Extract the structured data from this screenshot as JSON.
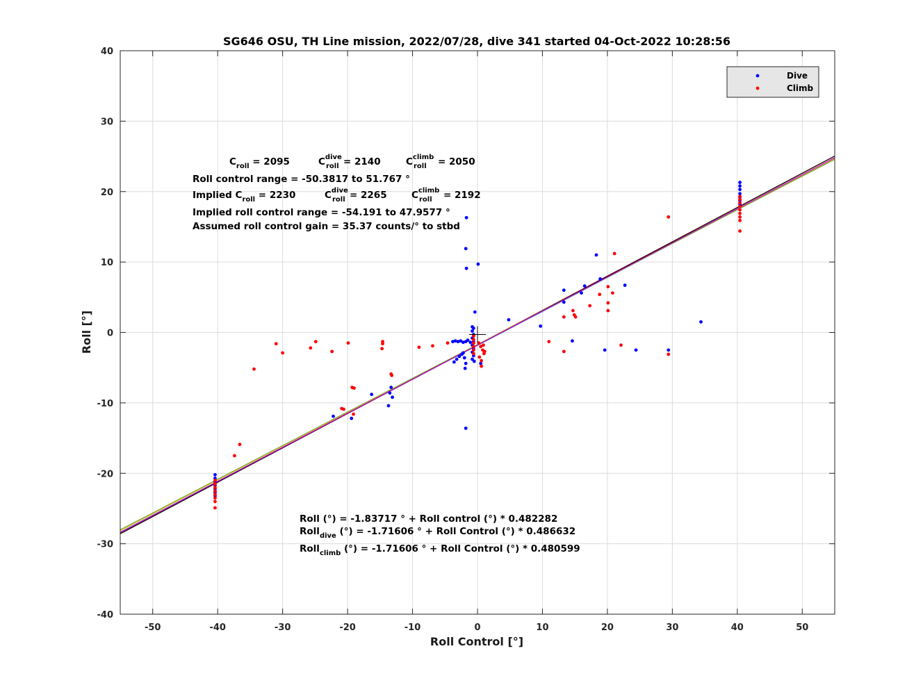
{
  "chart_data": {
    "type": "scatter",
    "title": "SG646 OSU, TH Line mission, 2022/07/28, dive 341 started 04-Oct-2022 10:28:56",
    "xlabel": "Roll Control [°]",
    "ylabel": "Roll [°]",
    "xlim": [
      -55,
      55
    ],
    "ylim": [
      -40,
      40
    ],
    "xticks": [
      -50,
      -40,
      -30,
      -20,
      -10,
      0,
      10,
      20,
      30,
      40,
      50
    ],
    "yticks": [
      -40,
      -30,
      -20,
      -10,
      0,
      10,
      20,
      30,
      40
    ],
    "grid": true,
    "legend_position": "top-right",
    "legend": [
      "Dive",
      "Climb"
    ],
    "colors": {
      "dive": "#0000ff",
      "climb": "#ff0000"
    },
    "series": [
      {
        "name": "Dive",
        "color": "#0000ff",
        "points": [
          [
            -40.4,
            -20.2
          ],
          [
            -40.4,
            -20.7
          ],
          [
            -40.4,
            -21.2
          ],
          [
            -40.4,
            -21.7
          ],
          [
            -40.4,
            -22.2
          ],
          [
            -40.4,
            -22.7
          ],
          [
            -40.4,
            -23.2
          ],
          [
            -22.2,
            -11.9
          ],
          [
            -19.4,
            -12.2
          ],
          [
            -16.3,
            -8.8
          ],
          [
            -13.7,
            -10.4
          ],
          [
            -13.3,
            -7.8
          ],
          [
            -13.1,
            -9.2
          ],
          [
            -13.5,
            -8.6
          ],
          [
            -3.8,
            -1.3
          ],
          [
            -3.4,
            -1.2
          ],
          [
            -3.0,
            -1.3
          ],
          [
            -2.6,
            -1.2
          ],
          [
            -2.2,
            -1.4
          ],
          [
            -1.8,
            -1.3
          ],
          [
            -1.5,
            -1.1
          ],
          [
            -1.1,
            -1.4
          ],
          [
            -3.6,
            -4.2
          ],
          [
            -3.2,
            -3.8
          ],
          [
            -2.8,
            -3.4
          ],
          [
            -2.4,
            -3.1
          ],
          [
            -2.0,
            -3.6
          ],
          [
            -1.8,
            -4.4
          ],
          [
            -1.9,
            -5.1
          ],
          [
            -2.2,
            -2.9
          ],
          [
            -1.7,
            16.3
          ],
          [
            -1.8,
            11.9
          ],
          [
            -1.7,
            9.1
          ],
          [
            0.1,
            9.7
          ],
          [
            -0.4,
            2.9
          ],
          [
            -1.8,
            -13.6
          ],
          [
            0.5,
            -4.4
          ],
          [
            -0.8,
            0.8
          ],
          [
            -0.6,
            0.6
          ],
          [
            -0.8,
            0.2
          ],
          [
            -0.6,
            -0.3
          ],
          [
            -0.8,
            -0.8
          ],
          [
            -0.6,
            -1.3
          ],
          [
            -0.8,
            -1.8
          ],
          [
            -0.6,
            -2.3
          ],
          [
            -0.8,
            -2.8
          ],
          [
            -0.6,
            -3.3
          ],
          [
            -0.8,
            -3.8
          ],
          [
            -0.5,
            -4.1
          ],
          [
            4.8,
            1.8
          ],
          [
            9.7,
            0.9
          ],
          [
            13.3,
            6.0
          ],
          [
            13.3,
            4.3
          ],
          [
            14.6,
            -1.2
          ],
          [
            16.0,
            5.6
          ],
          [
            16.5,
            6.6
          ],
          [
            18.3,
            11.0
          ],
          [
            18.9,
            7.6
          ],
          [
            19.6,
            -2.5
          ],
          [
            22.7,
            6.7
          ],
          [
            24.4,
            -2.5
          ],
          [
            29.4,
            -2.5
          ],
          [
            34.4,
            1.5
          ],
          [
            40.4,
            21.3
          ],
          [
            40.4,
            20.8
          ],
          [
            40.4,
            20.3
          ],
          [
            40.4,
            19.7
          ],
          [
            40.4,
            19.2
          ],
          [
            40.4,
            18.7
          ],
          [
            40.4,
            18.2
          ]
        ]
      },
      {
        "name": "Climb",
        "color": "#ff0000",
        "points": [
          [
            -40.4,
            -21.0
          ],
          [
            -40.4,
            -21.5
          ],
          [
            -40.4,
            -22.0
          ],
          [
            -40.4,
            -22.5
          ],
          [
            -40.4,
            -23.0
          ],
          [
            -40.4,
            -23.5
          ],
          [
            -40.4,
            -24.0
          ],
          [
            -40.4,
            -24.9
          ],
          [
            -37.4,
            -17.5
          ],
          [
            -36.6,
            -15.9
          ],
          [
            -34.4,
            -5.2
          ],
          [
            -31.0,
            -1.6
          ],
          [
            -30.0,
            -2.9
          ],
          [
            -25.7,
            -2.2
          ],
          [
            -24.9,
            -1.3
          ],
          [
            -22.4,
            -2.7
          ],
          [
            -20.9,
            -10.8
          ],
          [
            -20.6,
            -10.9
          ],
          [
            -19.9,
            -1.5
          ],
          [
            -19.3,
            -7.8
          ],
          [
            -19.0,
            -7.9
          ],
          [
            -19.1,
            -11.6
          ],
          [
            -14.6,
            -1.3
          ],
          [
            -14.6,
            -1.6
          ],
          [
            -14.7,
            -2.3
          ],
          [
            -13.3,
            -5.9
          ],
          [
            -13.2,
            -6.1
          ],
          [
            -9.0,
            -2.1
          ],
          [
            -6.9,
            -1.9
          ],
          [
            -4.6,
            -1.5
          ],
          [
            -0.6,
            -0.5
          ],
          [
            -0.6,
            -1.0
          ],
          [
            -0.6,
            -1.5
          ],
          [
            -0.6,
            -2.0
          ],
          [
            -0.6,
            -2.5
          ],
          [
            -0.6,
            -3.0
          ],
          [
            0.2,
            -1.5
          ],
          [
            0.5,
            -2.0
          ],
          [
            0.8,
            -2.5
          ],
          [
            1.0,
            -3.0
          ],
          [
            0.3,
            -3.5
          ],
          [
            0.6,
            -4.0
          ],
          [
            0.6,
            -4.8
          ],
          [
            0.9,
            -1.8
          ],
          [
            1.1,
            -2.7
          ],
          [
            11.0,
            -1.3
          ],
          [
            13.3,
            -2.7
          ],
          [
            13.3,
            2.2
          ],
          [
            14.7,
            3.1
          ],
          [
            14.9,
            2.5
          ],
          [
            15.1,
            2.2
          ],
          [
            17.3,
            3.8
          ],
          [
            18.8,
            5.4
          ],
          [
            20.1,
            3.1
          ],
          [
            20.1,
            4.2
          ],
          [
            20.1,
            6.5
          ],
          [
            20.8,
            5.6
          ],
          [
            21.1,
            11.2
          ],
          [
            22.1,
            -1.8
          ],
          [
            29.4,
            16.4
          ],
          [
            29.4,
            -3.1
          ],
          [
            40.4,
            14.4
          ],
          [
            40.4,
            15.9
          ],
          [
            40.4,
            16.4
          ],
          [
            40.4,
            16.9
          ],
          [
            40.4,
            17.4
          ],
          [
            40.4,
            17.9
          ],
          [
            40.4,
            18.4
          ],
          [
            40.4,
            18.9
          ],
          [
            40.4,
            19.3
          ]
        ]
      }
    ],
    "fit_lines": [
      {
        "color": "#0072bd",
        "intercept": -1.83717,
        "slope": 0.482282
      },
      {
        "color": "#d95319",
        "intercept": -1.71606,
        "slope": 0.486632
      },
      {
        "color": "#edb120",
        "intercept": -1.71606,
        "slope": 0.480599
      },
      {
        "color": "#000000",
        "intercept": -1.77,
        "slope": 0.4875
      },
      {
        "color": "#77ac30",
        "intercept": -1.72,
        "slope": 0.478
      },
      {
        "color": "#cc00cc",
        "intercept": -1.8,
        "slope": 0.484
      }
    ],
    "crosshair": [
      0,
      -0.3
    ],
    "annotations": {
      "c_roll": "C",
      "c_roll_sub": "roll",
      "c_roll_val": " = 2095",
      "c_dive": "C",
      "c_dive_sup": "dive",
      "c_dive_sub": "roll",
      "c_dive_val": " = 2140",
      "c_climb": "C",
      "c_climb_sup": "climb",
      "c_climb_sub": "roll",
      "c_climb_val": " = 2050",
      "range": "Roll control range = -50.3817 to 51.767 °",
      "implied_prefix": "Implied C",
      "implied_sub": "roll",
      "implied_val": " = 2230",
      "implied_dive": "C",
      "implied_dive_sup": "dive",
      "implied_dive_sub": "roll",
      "implied_dive_val": " = 2265",
      "implied_climb": "C",
      "implied_climb_sup": "climb",
      "implied_climb_sub": "roll",
      "implied_climb_val": " = 2192",
      "implied_range": "Implied roll control range = -54.191 to 47.9577 °",
      "gain": "Assumed roll control gain = 35.37 counts/° to stbd",
      "fit_all": "Roll (°) = -1.83717 ° + Roll control (°) * 0.482282",
      "fit_dive_pre": "Roll",
      "fit_dive_sub": "dive",
      "fit_dive_post": " (°) = -1.71606 ° + Roll Control (°) * 0.486632",
      "fit_climb_pre": "Roll",
      "fit_climb_sub": "climb",
      "fit_climb_post": " (°) = -1.71606 ° + Roll Control (°) * 0.480599"
    }
  }
}
